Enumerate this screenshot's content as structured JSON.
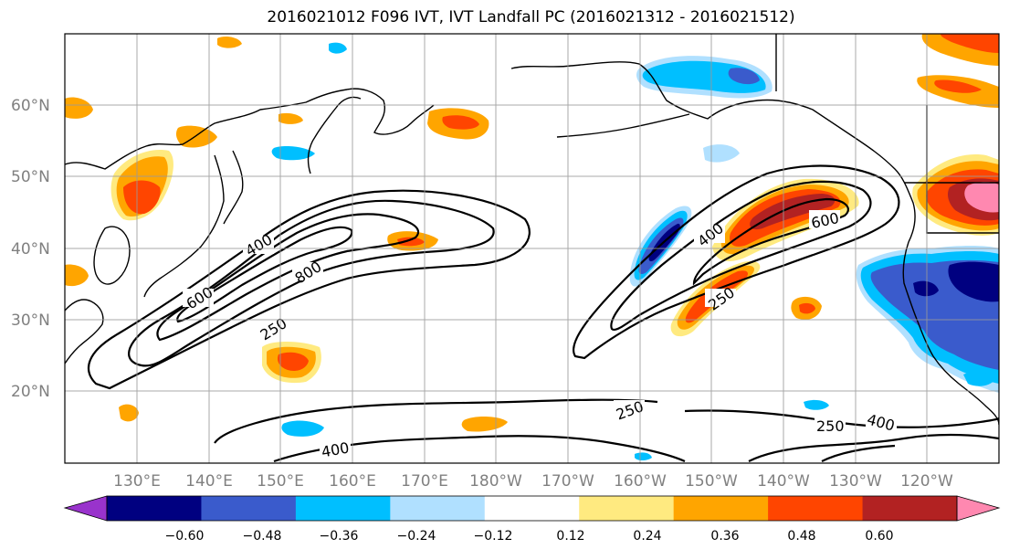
{
  "title": "2016021012 F096 IVT, IVT Landfall PC (2016021312 - 2016021512)",
  "lat_labels": [
    "60°N",
    "50°N",
    "40°N",
    "30°N",
    "20°N"
  ],
  "lon_labels": [
    "130°E",
    "140°E",
    "150°E",
    "160°E",
    "170°E",
    "180°W",
    "170°W",
    "160°W",
    "150°W",
    "140°W",
    "130°W",
    "120°W"
  ],
  "contour_labels": [
    "400",
    "600",
    "800",
    "250",
    "400",
    "600",
    "250",
    "250",
    "250",
    "400",
    "400"
  ],
  "colorbar": {
    "ticks": [
      "−0.60",
      "−0.48",
      "−0.36",
      "−0.24",
      "−0.12",
      "0.12",
      "0.24",
      "0.36",
      "0.48",
      "0.60"
    ],
    "colors": [
      "#9933cc",
      "#000080",
      "#3a5bcc",
      "#00bfff",
      "#b0e0ff",
      "#ffffff",
      "#ffea80",
      "#ffa500",
      "#ff4500",
      "#b22222",
      "#ff88b0"
    ]
  },
  "colors": {
    "neg_dark": "#000080",
    "neg_mid": "#3a5bcc",
    "neg_light": "#00bfff",
    "neg_pale": "#b0e0ff",
    "pos_pale": "#ffea80",
    "pos_light": "#ffa500",
    "pos_mid": "#ff4500",
    "pos_dark": "#b22222",
    "pos_max": "#ff88b0"
  }
}
